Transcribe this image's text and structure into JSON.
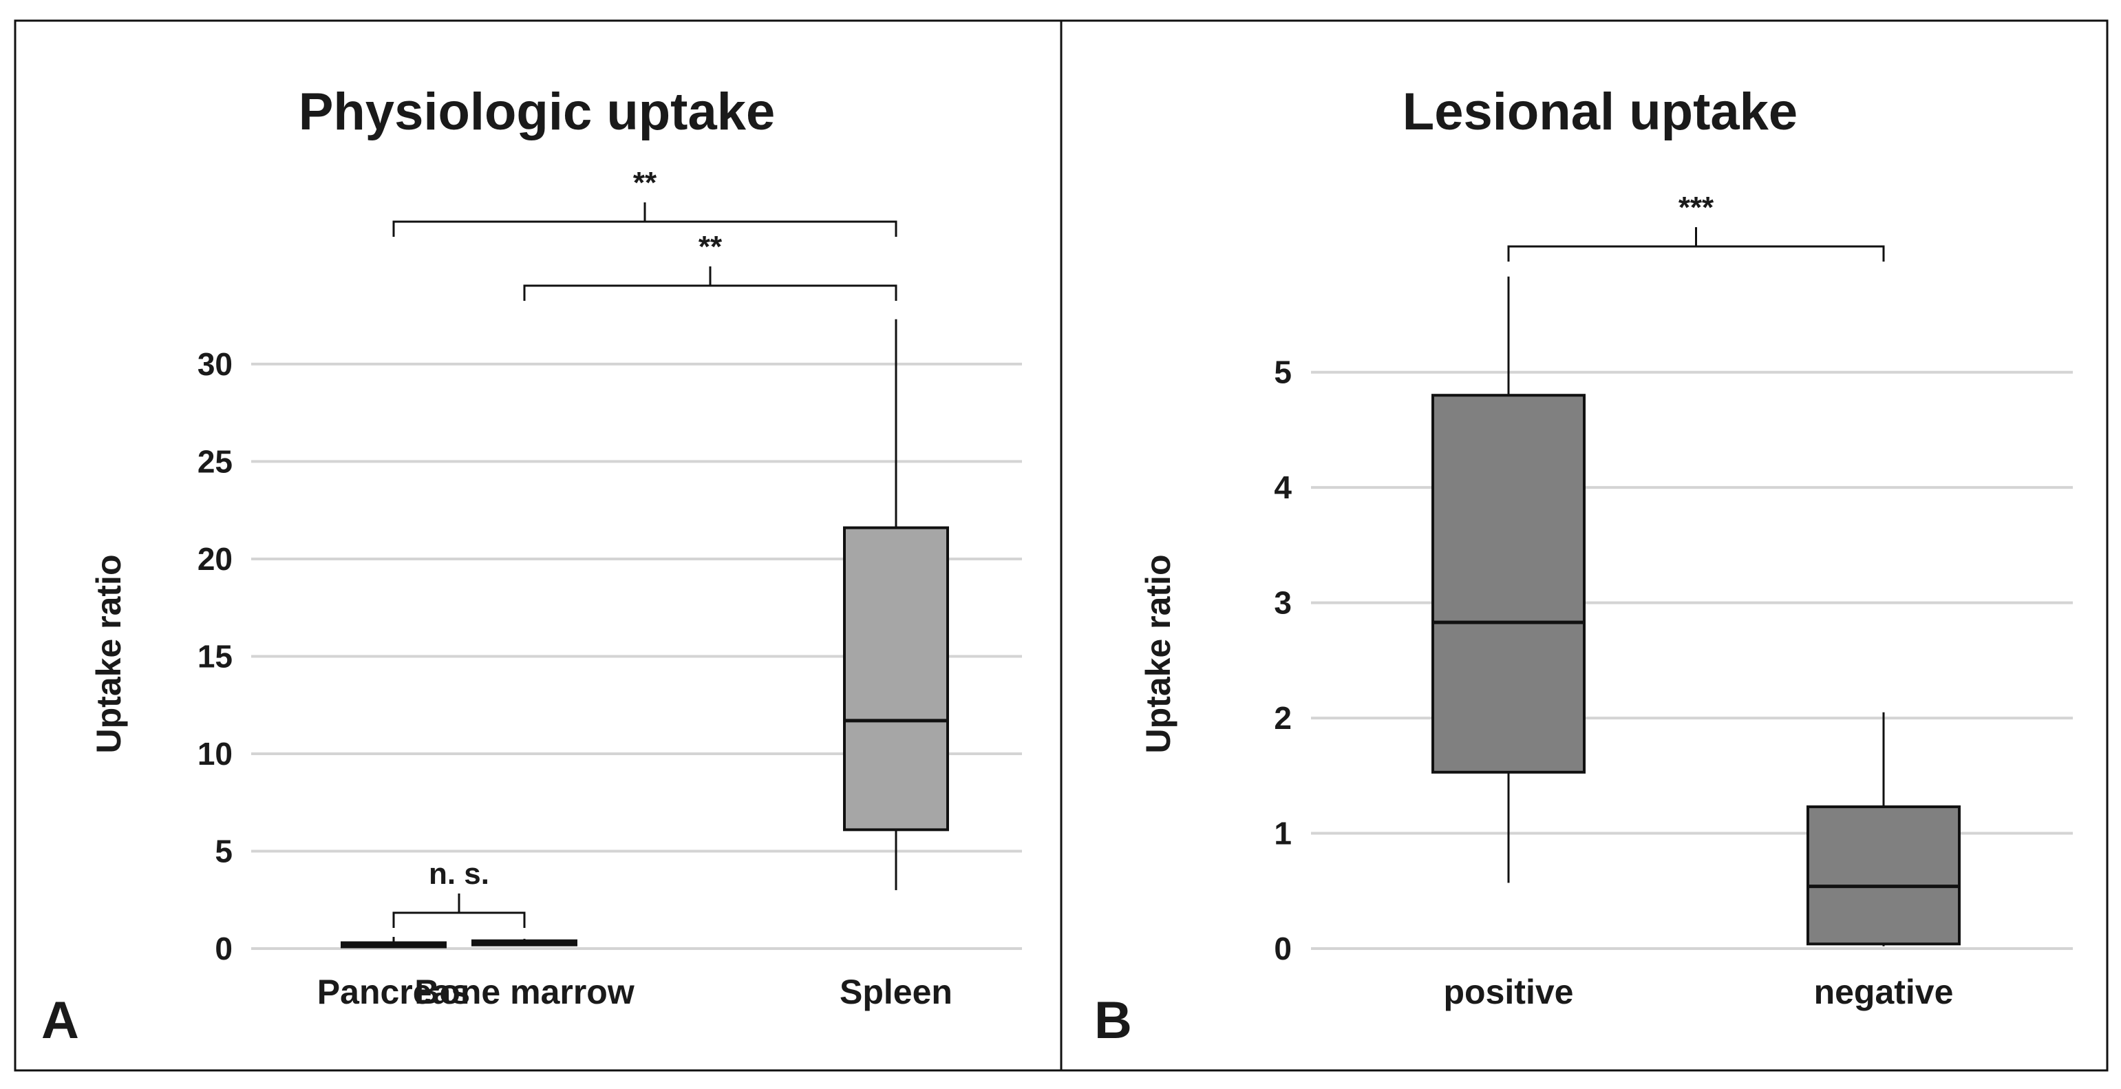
{
  "chart_data": [
    {
      "type": "box",
      "panel_label": "A",
      "title": "Physiologic uptake",
      "ylabel": "Uptake ratio",
      "xlabel": "",
      "ylim": [
        0,
        33
      ],
      "yticks": [
        0,
        5,
        10,
        15,
        20,
        25,
        30
      ],
      "grid": true,
      "box_color": "#a6a6a6",
      "categories": [
        "Pancreas",
        "Bone marrow",
        "Spleen"
      ],
      "boxes": [
        {
          "category": "Pancreas",
          "min": 0.05,
          "q1": 0.1,
          "median": 0.2,
          "q3": 0.3,
          "max": 0.6
        },
        {
          "category": "Bone marrow",
          "min": 0.15,
          "q1": 0.2,
          "median": 0.3,
          "q3": 0.4,
          "max": 0.5
        },
        {
          "category": "Spleen",
          "min": 3.0,
          "q1": 6.1,
          "median": 11.7,
          "q3": 21.6,
          "max": 32.3
        }
      ],
      "annotations": [
        {
          "from": "Pancreas",
          "to": "Bone marrow",
          "label": "n. s."
        },
        {
          "from": "Bone marrow",
          "to": "Spleen",
          "label": "**"
        },
        {
          "from": "Pancreas",
          "to": "Spleen",
          "label": "**"
        }
      ]
    },
    {
      "type": "box",
      "panel_label": "B",
      "title": "Lesional uptake",
      "ylabel": "Uptake ratio",
      "xlabel": "",
      "ylim": [
        0,
        5.9
      ],
      "yticks": [
        0,
        1,
        2,
        3,
        4,
        5
      ],
      "grid": true,
      "box_color": "#808080",
      "categories": [
        "positive",
        "negative"
      ],
      "boxes": [
        {
          "category": "positive",
          "min": 0.57,
          "q1": 1.53,
          "median": 2.83,
          "q3": 4.8,
          "max": 5.83
        },
        {
          "category": "negative",
          "min": 0.02,
          "q1": 0.04,
          "median": 0.54,
          "q3": 1.23,
          "max": 2.05
        }
      ],
      "annotations": [
        {
          "from": "positive",
          "to": "negative",
          "label": "***"
        }
      ]
    }
  ]
}
